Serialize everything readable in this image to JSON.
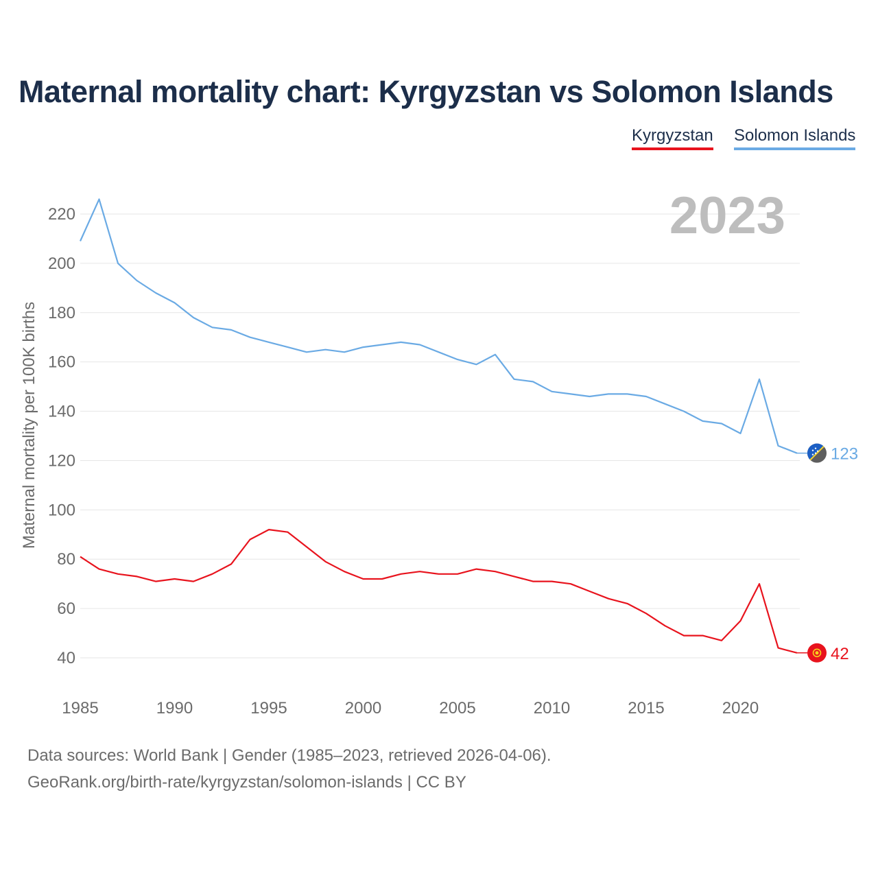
{
  "title": "Maternal mortality chart: Kyrgyzstan vs Solomon Islands",
  "legend": {
    "kyrgyzstan": "Kyrgyzstan",
    "solomon": "Solomon Islands"
  },
  "source_line1": "Data sources: World Bank | Gender (1985–2023, retrieved 2026-04-06).",
  "source_line2": "GeoRank.org/birth-rate/kyrgyzstan/solomon-islands | CC BY",
  "colors": {
    "kyrgyzstan": "#e8131d",
    "solomon": "#6aaae4",
    "title": "#1c2e4a",
    "year": "#bdbdbd",
    "axis_text": "#6b6b6b",
    "grid": "#e6e6e6"
  },
  "chart_data": {
    "type": "line",
    "title": "Maternal mortality chart: Kyrgyzstan vs Solomon Islands",
    "ylabel": "Maternal mortality per 100K births",
    "xlabel": "",
    "year_label": "2023",
    "xlim": [
      1985,
      2023
    ],
    "ylim": [
      30,
      230
    ],
    "xticks": [
      1985,
      1990,
      1995,
      2000,
      2005,
      2010,
      2015,
      2020
    ],
    "yticks": [
      40,
      60,
      80,
      100,
      120,
      140,
      160,
      180,
      200,
      220
    ],
    "x": [
      1985,
      1986,
      1987,
      1988,
      1989,
      1990,
      1991,
      1992,
      1993,
      1994,
      1995,
      1996,
      1997,
      1998,
      1999,
      2000,
      2001,
      2002,
      2003,
      2004,
      2005,
      2006,
      2007,
      2008,
      2009,
      2010,
      2011,
      2012,
      2013,
      2014,
      2015,
      2016,
      2017,
      2018,
      2019,
      2020,
      2021,
      2022,
      2023
    ],
    "series": [
      {
        "name": "Solomon Islands",
        "key": "solomon",
        "end_label": "123",
        "values": [
          209,
          226,
          200,
          193,
          188,
          184,
          178,
          174,
          173,
          170,
          168,
          166,
          164,
          165,
          164,
          166,
          167,
          168,
          167,
          164,
          161,
          159,
          163,
          153,
          152,
          148,
          147,
          146,
          147,
          147,
          146,
          143,
          140,
          136,
          135,
          131,
          153,
          126,
          123
        ]
      },
      {
        "name": "Kyrgyzstan",
        "key": "kyrgyzstan",
        "end_label": "42",
        "values": [
          81,
          76,
          74,
          73,
          71,
          72,
          71,
          74,
          78,
          88,
          92,
          91,
          85,
          79,
          75,
          72,
          72,
          74,
          75,
          74,
          74,
          76,
          75,
          73,
          71,
          71,
          70,
          67,
          64,
          62,
          58,
          53,
          49,
          49,
          47,
          55,
          70,
          44,
          42
        ]
      }
    ]
  }
}
